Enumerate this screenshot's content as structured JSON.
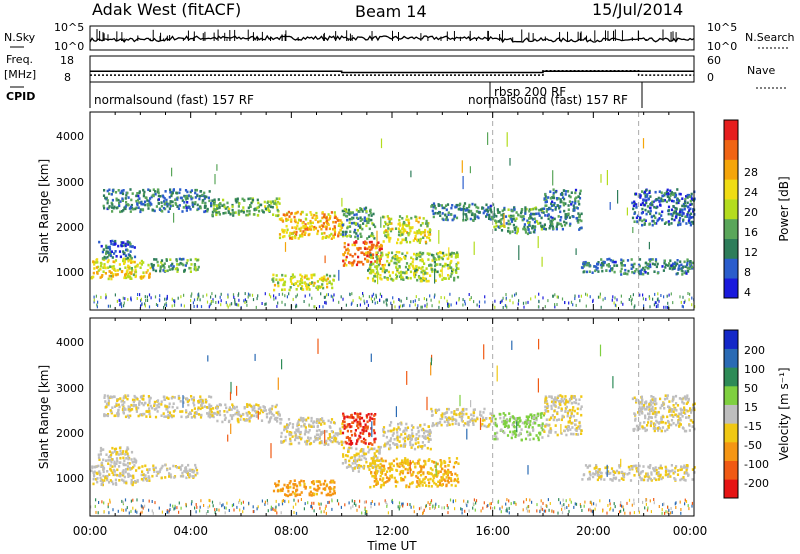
{
  "header": {
    "radar": "Adak West (fitACF)",
    "beam": "Beam 14",
    "date": "15/Jul/2014"
  },
  "sky_panel": {
    "left_label": "N.Sky",
    "left_ticks": [
      "10^5",
      "10^0"
    ],
    "right_ticks": [
      "10^5",
      "10^0"
    ],
    "right_label": "N.Search"
  },
  "freq_panel": {
    "left_label_1": "Freq.",
    "left_label_2": "[MHz]",
    "left_ticks": [
      "18",
      "8"
    ],
    "right_ticks": [
      "60",
      "0"
    ],
    "right_label": "Nave",
    "freq_mhz": [
      [
        0,
        10,
        11
      ],
      [
        10,
        18,
        10.4
      ],
      [
        18,
        24,
        11
      ]
    ],
    "nave": [
      [
        0,
        16,
        16
      ],
      [
        16,
        18,
        16
      ],
      [
        18,
        21.8,
        26
      ],
      [
        21.8,
        24,
        16
      ]
    ]
  },
  "cpid": {
    "label": "CPID",
    "programs": [
      {
        "text": "normalsound (fast) 157 RF",
        "start_hour": 0
      },
      {
        "text": "rbsp 200 RF",
        "start_hour": 16
      },
      {
        "text": "normalsound (fast) 157 RF",
        "start_hour": 21.8
      }
    ]
  },
  "power_panel": {
    "ylabel": "Slant Range [km]",
    "yticks": [
      "4000",
      "3000",
      "2000",
      "1000"
    ],
    "colorbar_label": "Power [dB]",
    "colorbar_ticks": [
      "28",
      "24",
      "20",
      "16",
      "12",
      "8",
      "4"
    ],
    "colors": [
      "#1a1adc",
      "#2b5dcc",
      "#2e7d5a",
      "#5aa65a",
      "#b4dc1e",
      "#f0dc14",
      "#f5a50a",
      "#f06414",
      "#e61e1e"
    ]
  },
  "velocity_panel": {
    "ylabel": "Slant Range [km]",
    "yticks": [
      "4000",
      "3000",
      "2000",
      "1000"
    ],
    "colorbar_label": "Velocity [m s⁻¹]",
    "colorbar_ticks": [
      "200",
      "100",
      "50",
      "15",
      "-15",
      "-50",
      "-100",
      "-200"
    ],
    "colors": [
      "#1428c8",
      "#2a6ab4",
      "#2e8b57",
      "#7fd040",
      "#bebebe",
      "#f0c814",
      "#f59614",
      "#f05a14",
      "#e61414"
    ],
    "xticks": [
      "00:00",
      "04:00",
      "08:00",
      "12:00",
      "16:00",
      "20:00",
      "00:00"
    ],
    "xlabel": "Time UT"
  },
  "chart_data": {
    "type": "heatmap",
    "x_unit": "hour UT",
    "xlim": [
      0,
      24
    ],
    "y_unit": "km",
    "ylim": [
      180,
      4600
    ],
    "power_scatter_bands": [
      {
        "t0": 0.0,
        "t1": 2.4,
        "r0": 900,
        "r1": 1350,
        "db": 20,
        "vel": -10
      },
      {
        "t0": 2.4,
        "t1": 4.3,
        "r0": 1050,
        "r1": 1350,
        "db": 12,
        "vel": -10
      },
      {
        "t0": 0.3,
        "t1": 1.8,
        "r0": 1350,
        "r1": 1750,
        "db": 8,
        "vel": -10
      },
      {
        "t0": 0.5,
        "t1": 4.8,
        "r0": 2400,
        "r1": 2900,
        "db": 10,
        "vel": -10
      },
      {
        "t0": 4.8,
        "t1": 7.5,
        "r0": 2300,
        "r1": 2700,
        "db": 14,
        "vel": -10
      },
      {
        "t0": 7.5,
        "t1": 10.0,
        "r0": 1800,
        "r1": 2400,
        "db": 22,
        "vel": -10
      },
      {
        "t0": 10.0,
        "t1": 11.6,
        "r0": 1200,
        "r1": 1750,
        "db": 26,
        "vel": -15
      },
      {
        "t0": 11.6,
        "t1": 13.5,
        "r0": 1700,
        "r1": 2300,
        "db": 18,
        "vel": -10
      },
      {
        "t0": 13.5,
        "t1": 16.0,
        "r0": 2200,
        "r1": 2600,
        "db": 10,
        "vel": -10
      },
      {
        "t0": 16.0,
        "t1": 18.0,
        "r0": 1900,
        "r1": 2500,
        "db": 12,
        "vel": 20
      },
      {
        "t0": 7.2,
        "t1": 9.7,
        "r0": 650,
        "r1": 1000,
        "db": 18,
        "vel": -60
      },
      {
        "t0": 11.0,
        "t1": 14.6,
        "r0": 850,
        "r1": 1500,
        "db": 16,
        "vel": -45
      },
      {
        "t0": 10.0,
        "t1": 11.3,
        "r0": 1800,
        "r1": 2500,
        "db": 12,
        "vel": -200
      },
      {
        "t0": 18.0,
        "t1": 19.5,
        "r0": 2000,
        "r1": 2900,
        "db": 10,
        "vel": -10
      },
      {
        "t0": 21.5,
        "t1": 24.0,
        "r0": 2100,
        "r1": 2900,
        "db": 8,
        "vel": -10
      },
      {
        "t0": 19.5,
        "t1": 24.0,
        "r0": 1000,
        "r1": 1350,
        "db": 10,
        "vel": -10
      }
    ]
  }
}
